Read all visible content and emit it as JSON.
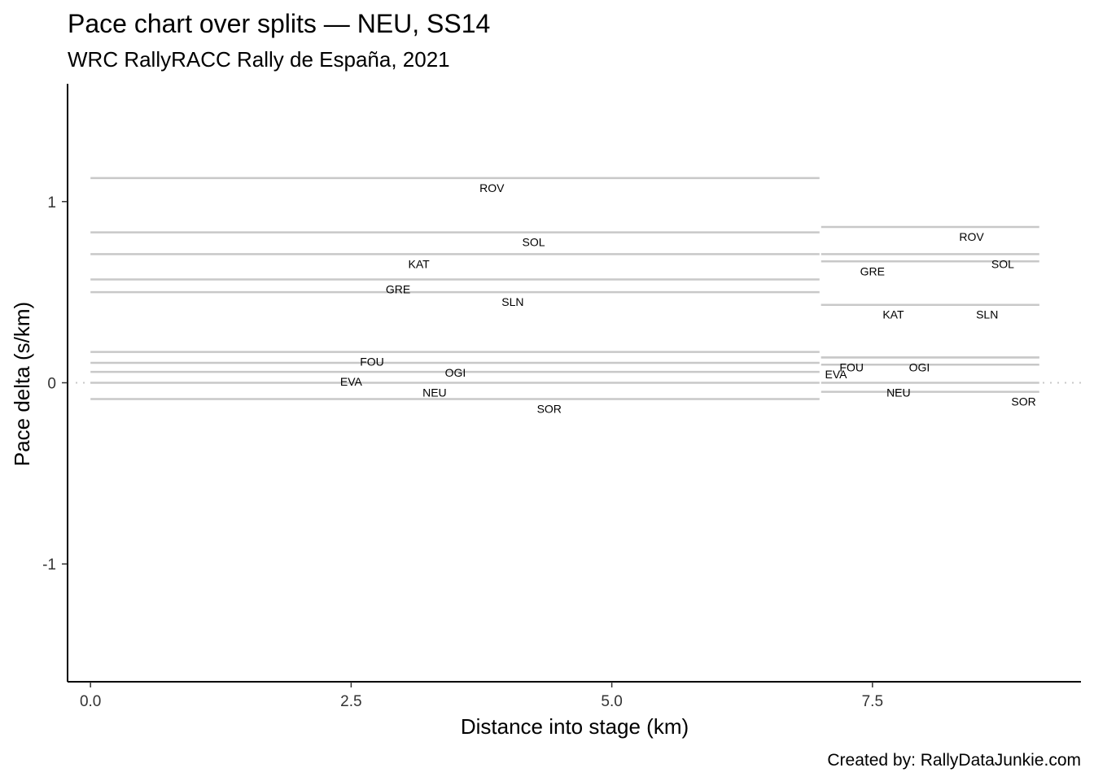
{
  "chart_data": {
    "type": "line",
    "title": "Pace chart over splits — NEU, SS14",
    "subtitle": "WRC RallyRACC Rally de España, 2021",
    "xlabel": "Distance into stage (km)",
    "ylabel": "Pace delta (s/km)",
    "caption": "Created by: RallyDataJunkie.com",
    "xlim": [
      -0.22,
      9.5
    ],
    "ylim": [
      1.65,
      -1.65
    ],
    "y_reversed": true,
    "grid": false,
    "reference_line_y": 0,
    "x_ticks": [
      {
        "value": 0,
        "label": "0.0"
      },
      {
        "value": 2.5,
        "label": "2.5"
      },
      {
        "value": 5,
        "label": "5.0"
      },
      {
        "value": 7.5,
        "label": "7.5"
      }
    ],
    "y_ticks": [
      {
        "value": -1,
        "label": "-1"
      },
      {
        "value": 0,
        "label": "0"
      },
      {
        "value": 1,
        "label": "1"
      }
    ],
    "splits": [
      {
        "x_start": 0,
        "x_end": 7.0
      },
      {
        "x_start": 7.0,
        "x_end": 9.1
      }
    ],
    "series": [
      {
        "name": "SOR",
        "values": [
          -0.09,
          -0.05
        ],
        "label_x": [
          4.4,
          8.95
        ]
      },
      {
        "name": "NEU",
        "values": [
          0.0,
          0.0
        ],
        "label_x": [
          3.3,
          7.75
        ]
      },
      {
        "name": "EVA",
        "values": [
          0.06,
          0.1
        ],
        "label_x": [
          2.5,
          7.15
        ]
      },
      {
        "name": "OGI",
        "values": [
          0.11,
          0.14
        ],
        "label_x": [
          3.5,
          7.95
        ]
      },
      {
        "name": "FOU",
        "values": [
          0.17,
          0.14
        ],
        "label_x": [
          2.7,
          7.3
        ]
      },
      {
        "name": "SLN",
        "values": [
          0.5,
          0.43
        ],
        "label_x": [
          4.05,
          8.6
        ]
      },
      {
        "name": "GRE",
        "values": [
          0.57,
          0.67
        ],
        "label_x": [
          2.95,
          7.5
        ]
      },
      {
        "name": "KAT",
        "values": [
          0.71,
          0.43
        ],
        "label_x": [
          3.15,
          7.7
        ]
      },
      {
        "name": "SOL",
        "values": [
          0.83,
          0.71
        ],
        "label_x": [
          4.25,
          8.75
        ]
      },
      {
        "name": "ROV",
        "values": [
          1.13,
          0.86
        ],
        "label_x": [
          3.85,
          8.45
        ]
      }
    ]
  }
}
